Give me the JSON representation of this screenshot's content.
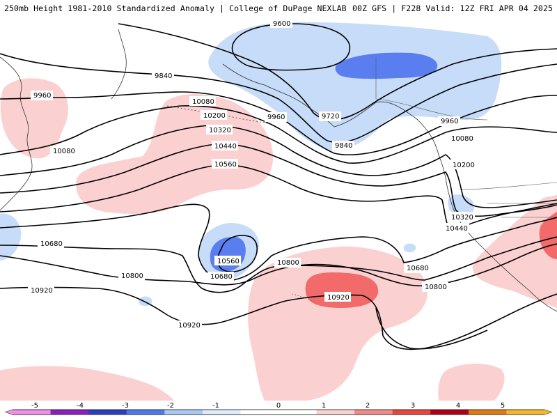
{
  "header": {
    "left": "250mb Height 1981-2010 Standardized Anomaly | College of DuPage NEXLAB",
    "right": "00Z GFS | F228 Valid: 12Z FRI APR 04 2025"
  },
  "map": {
    "contour_labels": [
      {
        "text": "9600"
      },
      {
        "text": "9720"
      },
      {
        "text": "9840"
      },
      {
        "text": "9840"
      },
      {
        "text": "9960"
      },
      {
        "text": "9960"
      },
      {
        "text": "9960"
      },
      {
        "text": "10080"
      },
      {
        "text": "10080"
      },
      {
        "text": "10080"
      },
      {
        "text": "10200"
      },
      {
        "text": "10200"
      },
      {
        "text": "10320"
      },
      {
        "text": "10320"
      },
      {
        "text": "10440"
      },
      {
        "text": "10440"
      },
      {
        "text": "10560"
      },
      {
        "text": "10560"
      },
      {
        "text": "10680"
      },
      {
        "text": "10680"
      },
      {
        "text": "10680"
      },
      {
        "text": "10800"
      },
      {
        "text": "10800"
      },
      {
        "text": "10800"
      },
      {
        "text": "10920"
      },
      {
        "text": "10920"
      },
      {
        "text": "10920"
      }
    ],
    "colors": {
      "anom_neg1": "#c6dcf8",
      "anom_neg2": "#5a7ef0",
      "anom_pos1": "#fbd0d0",
      "anom_pos2": "#f26a6a",
      "contour": "#000000",
      "coast": "#333333"
    }
  },
  "colorbar": {
    "ticks": [
      "-5",
      "-4",
      "-3",
      "-2",
      "-1",
      "0",
      "1",
      "2",
      "3",
      "4",
      "5"
    ],
    "colors": [
      "#f08ee8",
      "#8a1fc0",
      "#2a3fbf",
      "#4f78ec",
      "#a9c8f5",
      "#ddebfb",
      "#ffffff",
      "#ffffff",
      "#fbd0d0",
      "#f28a8a",
      "#e8453c",
      "#b00018",
      "#e07a10",
      "#f6b52a"
    ]
  }
}
